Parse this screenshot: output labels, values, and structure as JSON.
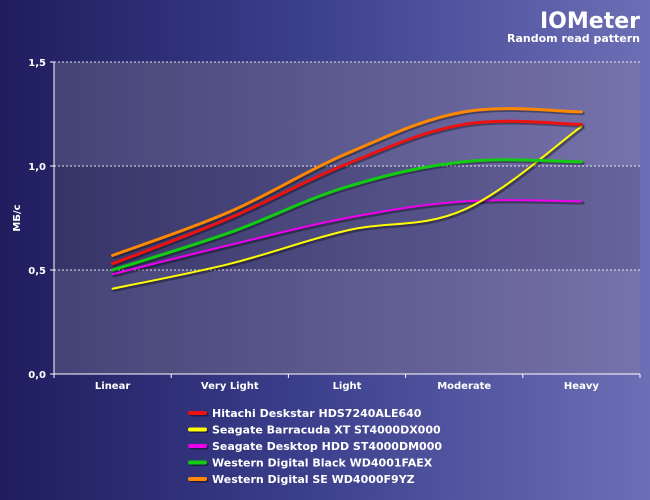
{
  "chart_data": {
    "type": "line",
    "title": "IOMeter",
    "subtitle": "Random read pattern",
    "xlabel": "",
    "ylabel": "МБ/с",
    "categories": [
      "Linear",
      "Very Light",
      "Light",
      "Moderate",
      "Heavy"
    ],
    "ylim": [
      0,
      1.5
    ],
    "yticks": [
      "0,0",
      "0,5",
      "1,0",
      "1,5"
    ],
    "ytick_values": [
      0,
      0.5,
      1.0,
      1.5
    ],
    "grid": true,
    "legend_position": "bottom",
    "series": [
      {
        "name": "Hitachi Deskstar HDS7240ALE640",
        "color": "#ee1111",
        "values": [
          0.53,
          0.75,
          1.01,
          1.2,
          1.2
        ]
      },
      {
        "name": "Seagate Barracuda XT ST4000DX000",
        "color": "#ffff00",
        "values": [
          0.41,
          0.53,
          0.69,
          0.79,
          1.19
        ]
      },
      {
        "name": "Seagate Desktop HDD ST4000DM000",
        "color": "#ee00ee",
        "values": [
          0.48,
          0.62,
          0.75,
          0.83,
          0.83
        ]
      },
      {
        "name": "Western Digital Black WD4001FAEX",
        "color": "#11cc11",
        "values": [
          0.5,
          0.68,
          0.9,
          1.02,
          1.02
        ]
      },
      {
        "name": "Western Digital SE WD4000F9YZ",
        "color": "#ff8800",
        "values": [
          0.57,
          0.78,
          1.06,
          1.26,
          1.26
        ]
      }
    ]
  }
}
